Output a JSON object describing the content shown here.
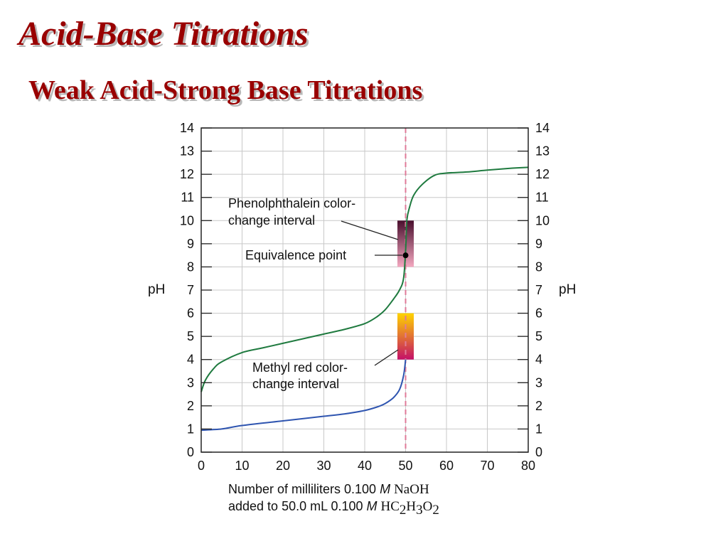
{
  "slide": {
    "title": "Acid-Base Titrations",
    "subtitle": "Weak Acid-Strong Base Titrations"
  },
  "chart_data": {
    "type": "line",
    "xlim": [
      0,
      80
    ],
    "ylim": [
      0,
      14
    ],
    "x_ticks": [
      0,
      10,
      20,
      30,
      40,
      50,
      60,
      70,
      80
    ],
    "y_ticks": [
      0,
      1,
      2,
      3,
      4,
      5,
      6,
      7,
      8,
      9,
      10,
      11,
      12,
      13,
      14
    ],
    "highlight_x_tick": 50,
    "ylabel": "pH",
    "grid": true,
    "equivalence_x": 50,
    "xlabel_line1": {
      "prefix": "Number of milliliters 0.100 ",
      "unit": "M",
      "chem": "NaOH"
    },
    "xlabel_line2": {
      "prefix": "added to 50.0 mL 0.100 ",
      "unit": "M",
      "chem_parts": [
        "HC",
        "2",
        "H",
        "3",
        "O",
        "2"
      ]
    },
    "series": [
      {
        "color": "#1f7a3f",
        "points": [
          [
            0,
            2.6
          ],
          [
            1,
            3.1
          ],
          [
            3,
            3.6
          ],
          [
            5,
            3.9
          ],
          [
            10,
            4.3
          ],
          [
            15,
            4.5
          ],
          [
            20,
            4.7
          ],
          [
            25,
            4.9
          ],
          [
            30,
            5.1
          ],
          [
            35,
            5.3
          ],
          [
            40,
            5.55
          ],
          [
            43,
            5.85
          ],
          [
            45,
            6.15
          ],
          [
            47,
            6.6
          ],
          [
            48.5,
            7.0
          ],
          [
            49.5,
            7.5
          ],
          [
            50,
            8.7
          ],
          [
            50.3,
            10.0
          ],
          [
            51,
            10.6
          ],
          [
            52,
            11.1
          ],
          [
            54,
            11.55
          ],
          [
            57,
            11.95
          ],
          [
            60,
            12.05
          ],
          [
            65,
            12.1
          ],
          [
            70,
            12.18
          ],
          [
            75,
            12.25
          ],
          [
            80,
            12.3
          ]
        ]
      },
      {
        "color": "#2f55b0",
        "points": [
          [
            0,
            0.95
          ],
          [
            5,
            1.0
          ],
          [
            10,
            1.15
          ],
          [
            20,
            1.35
          ],
          [
            30,
            1.55
          ],
          [
            35,
            1.65
          ],
          [
            40,
            1.8
          ],
          [
            43,
            1.95
          ],
          [
            45,
            2.1
          ],
          [
            47,
            2.35
          ],
          [
            48.5,
            2.7
          ],
          [
            49.5,
            3.3
          ],
          [
            50,
            4.0
          ]
        ]
      }
    ],
    "bands": [
      {
        "name": "phenolphthalein",
        "ph_range": [
          8,
          10
        ],
        "x_range": [
          48,
          52
        ],
        "colors": [
          "#4a0f2e",
          "#f4a8c0"
        ]
      },
      {
        "name": "methyl-red",
        "ph_range": [
          4,
          6
        ],
        "x_range": [
          48,
          52
        ],
        "colors": [
          "#c41068",
          "#ffd400"
        ]
      }
    ],
    "annotations": {
      "phenolphthalein": [
        "Phenolphthalein color-",
        "change interval"
      ],
      "equivalence": "Equivalence point",
      "methyl_red": [
        "Methyl red color-",
        "change interval"
      ]
    },
    "equivalence_point": [
      50,
      8.5
    ],
    "colors": {
      "curve_green": "#1f7a3f",
      "curve_blue": "#2f55b0",
      "equivalence_line": "#e07a98",
      "highlight_tick": "#c0143c",
      "grid": "#c8c8c8"
    }
  }
}
